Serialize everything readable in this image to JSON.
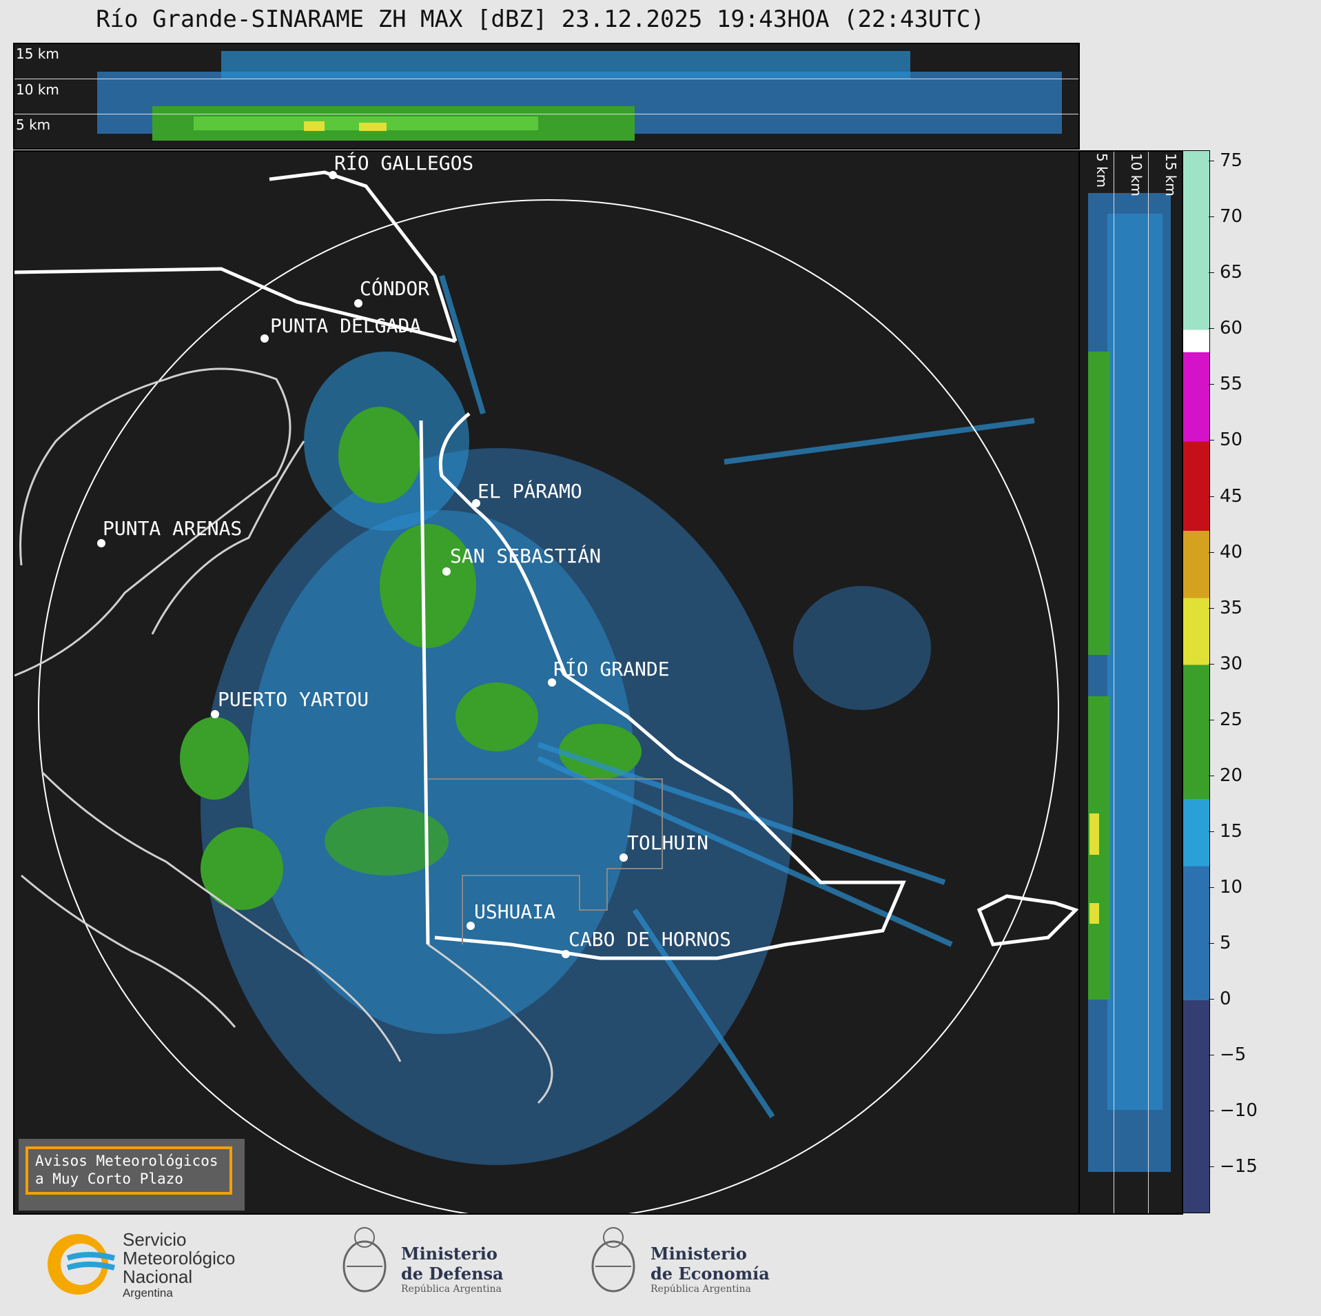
{
  "title": "Río Grande-SINARAME ZH MAX [dBZ] 23.12.2025 19:43HOA (22:43UTC)",
  "top_panel": {
    "height_labels": [
      "15 km",
      "10 km",
      "5 km"
    ]
  },
  "side_panel": {
    "height_labels": [
      "5 km",
      "10 km",
      "15 km"
    ]
  },
  "colorbar": {
    "unit": "dBZ",
    "ticks": [
      "75",
      "70",
      "65",
      "60",
      "55",
      "50",
      "45",
      "40",
      "35",
      "30",
      "25",
      "20",
      "15",
      "10",
      "5",
      "0",
      "−5",
      "−10",
      "−15"
    ],
    "segments": [
      {
        "from": 60,
        "to": 76,
        "color": "#9fe3c6"
      },
      {
        "from": 58,
        "to": 60,
        "color": "#ffffff"
      },
      {
        "from": 50,
        "to": 58,
        "color": "#d412c8"
      },
      {
        "from": 42,
        "to": 50,
        "color": "#c5101a"
      },
      {
        "from": 36,
        "to": 42,
        "color": "#d4a21f"
      },
      {
        "from": 30,
        "to": 36,
        "color": "#e0e036"
      },
      {
        "from": 18,
        "to": 30,
        "color": "#3aa02a"
      },
      {
        "from": 12,
        "to": 18,
        "color": "#2aa0d8"
      },
      {
        "from": 0,
        "to": 12,
        "color": "#2d72b0"
      },
      {
        "from": -19,
        "to": 0,
        "color": "#343e72"
      }
    ]
  },
  "cities": [
    {
      "name": "RÍO GALLEGOS"
    },
    {
      "name": "CÓNDOR"
    },
    {
      "name": "PUNTA DELGADA"
    },
    {
      "name": "EL PÁRAMO"
    },
    {
      "name": "PUNTA ARENAS"
    },
    {
      "name": "SAN SEBASTIÁN"
    },
    {
      "name": "RÍO GRANDE"
    },
    {
      "name": "PUERTO YARTOU"
    },
    {
      "name": "TOLHUIN"
    },
    {
      "name": "USHUAIA"
    },
    {
      "name": "CABO DE HORNOS"
    }
  ],
  "notice": {
    "line1": "Avisos Meteorológicos",
    "line2": "a Muy Corto Plazo"
  },
  "logos": {
    "smn": {
      "line1": "Servicio",
      "line2": "Meteorológico",
      "line3": "Nacional",
      "line4": "Argentina"
    },
    "defensa": {
      "line1": "Ministerio",
      "line2": "de Defensa",
      "line3": "República Argentina"
    },
    "economia": {
      "line1": "Ministerio",
      "line2": "de Economía",
      "line3": "República Argentina"
    }
  }
}
